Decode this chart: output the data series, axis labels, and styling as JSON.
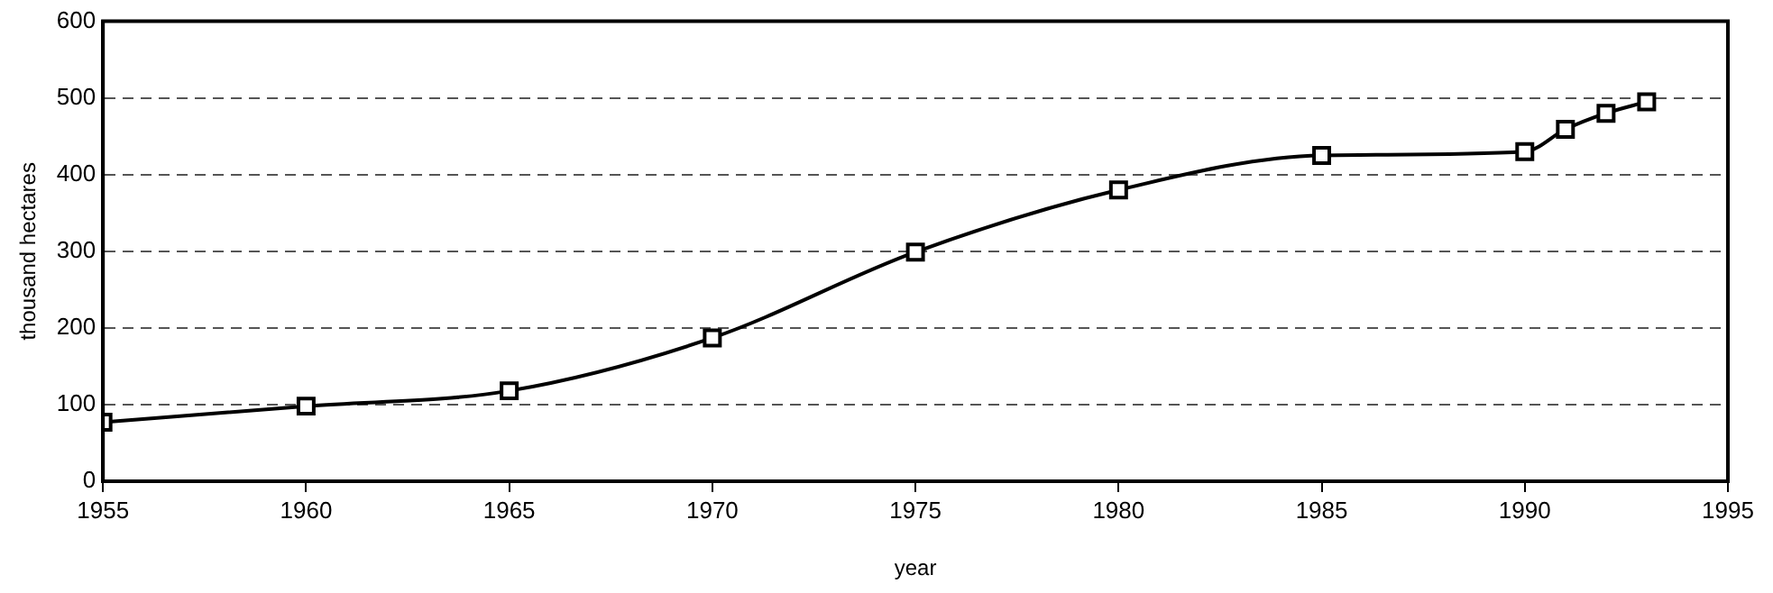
{
  "chart_data": {
    "type": "line",
    "xlabel": "year",
    "ylabel": "thousand hectares",
    "x": [
      1955,
      1960,
      1965,
      1970,
      1975,
      1980,
      1985,
      1990,
      1991,
      1992,
      1993
    ],
    "series": [
      {
        "color": "#000000",
        "values": [
          77,
          98,
          118,
          187,
          299,
          380,
          425,
          430,
          459,
          480,
          495
        ]
      }
    ],
    "xlim": [
      1955,
      1995
    ],
    "xticks": [
      1955,
      1960,
      1965,
      1970,
      1975,
      1980,
      1985,
      1990,
      1995
    ],
    "ylim": [
      0,
      600
    ],
    "yticks": [
      0,
      100,
      200,
      300,
      400,
      500,
      600
    ],
    "grid": "y",
    "marker": "square",
    "line_style": "solid",
    "legend": false
  }
}
